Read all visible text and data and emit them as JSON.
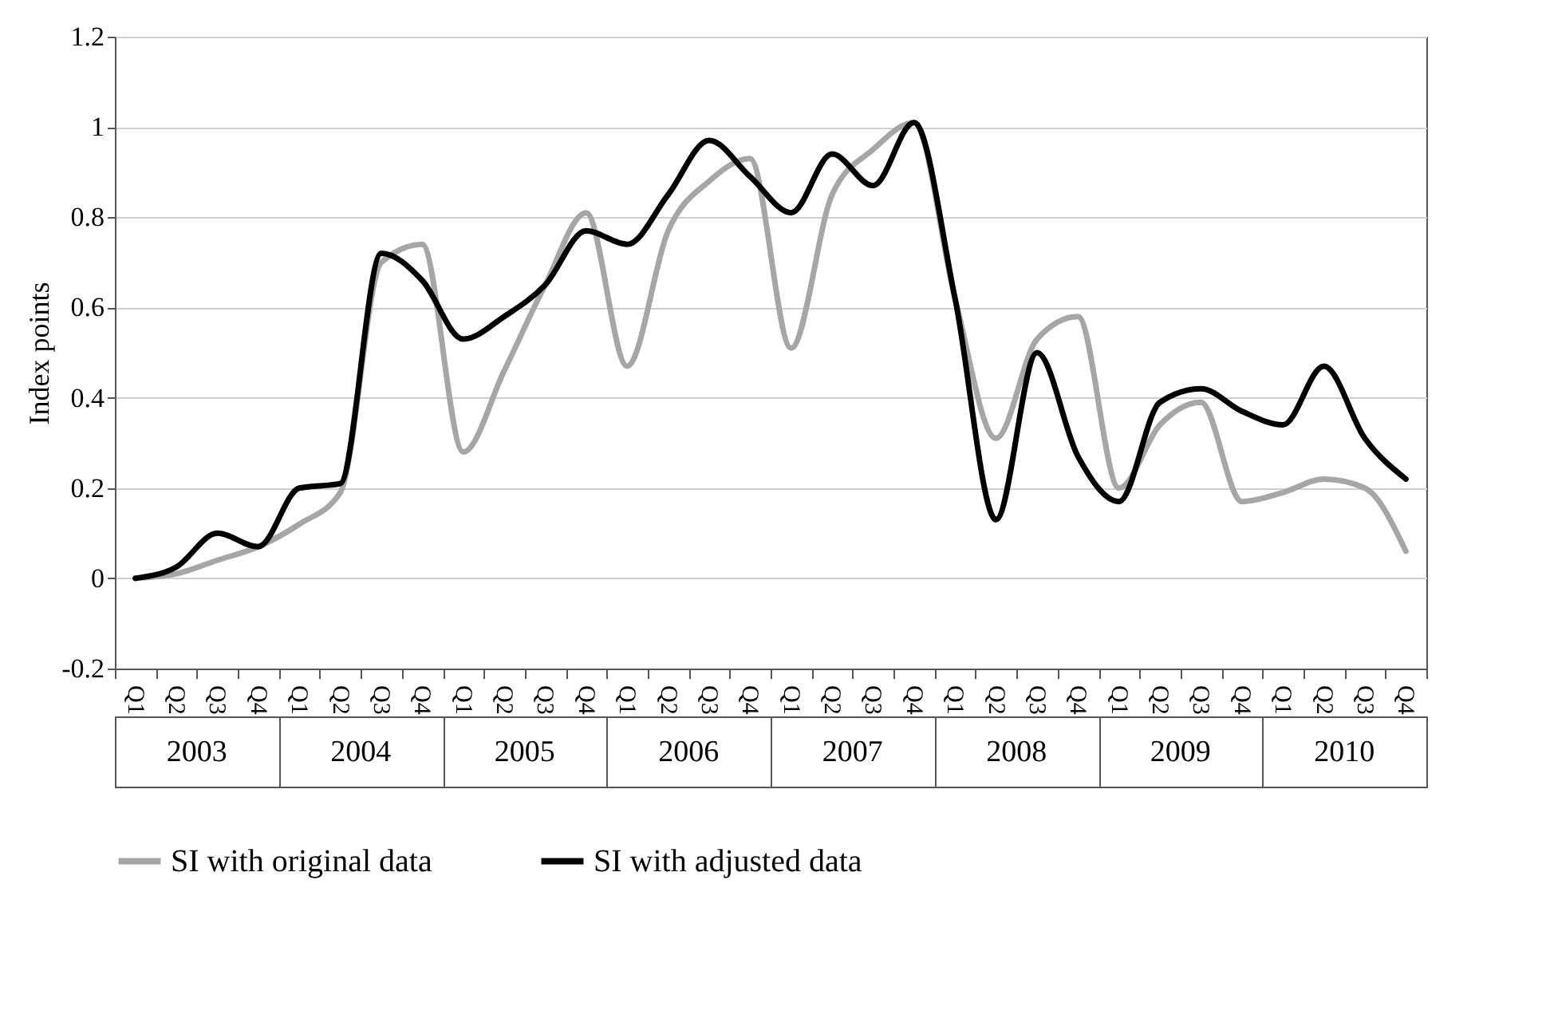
{
  "chart_data": {
    "type": "line",
    "ylabel": "Index points",
    "categories": [
      "Q1",
      "Q2",
      "Q3",
      "Q4",
      "Q1",
      "Q2",
      "Q3",
      "Q4",
      "Q1",
      "Q2",
      "Q3",
      "Q4",
      "Q1",
      "Q2",
      "Q3",
      "Q4",
      "Q1",
      "Q2",
      "Q3",
      "Q4",
      "Q1",
      "Q2",
      "Q3",
      "Q4",
      "Q1",
      "Q2",
      "Q3",
      "Q4",
      "Q1",
      "Q2",
      "Q3",
      "Q4"
    ],
    "annotations": [
      "2003",
      "2004",
      "2005",
      "2006",
      "2007",
      "2008",
      "2009",
      "2010"
    ],
    "series": [
      {
        "name": "SI with original data",
        "color": "#a6a6a6",
        "values": [
          0.0,
          0.01,
          0.04,
          0.07,
          0.12,
          0.19,
          0.7,
          0.74,
          0.28,
          0.46,
          0.65,
          0.81,
          0.47,
          0.77,
          0.88,
          0.93,
          0.51,
          0.85,
          0.95,
          1.01,
          0.62,
          0.31,
          0.53,
          0.58,
          0.2,
          0.34,
          0.39,
          0.17,
          0.19,
          0.22,
          0.2,
          0.06
        ]
      },
      {
        "name": "SI with adjusted data",
        "color": "#000000",
        "values": [
          0.0,
          0.025,
          0.1,
          0.07,
          0.2,
          0.21,
          0.72,
          0.66,
          0.53,
          0.58,
          0.65,
          0.77,
          0.74,
          0.85,
          0.97,
          0.89,
          0.81,
          0.94,
          0.87,
          1.01,
          0.62,
          0.13,
          0.5,
          0.27,
          0.17,
          0.39,
          0.42,
          0.37,
          0.34,
          0.47,
          0.31,
          0.22
        ]
      }
    ],
    "ylim": [
      -0.2,
      1.2
    ],
    "yticks": [
      -0.2,
      0,
      0.2,
      0.4,
      0.6,
      0.8,
      1,
      1.2
    ],
    "grid": "y",
    "legend": "bottom",
    "marker": "none",
    "line_style": "solid"
  }
}
